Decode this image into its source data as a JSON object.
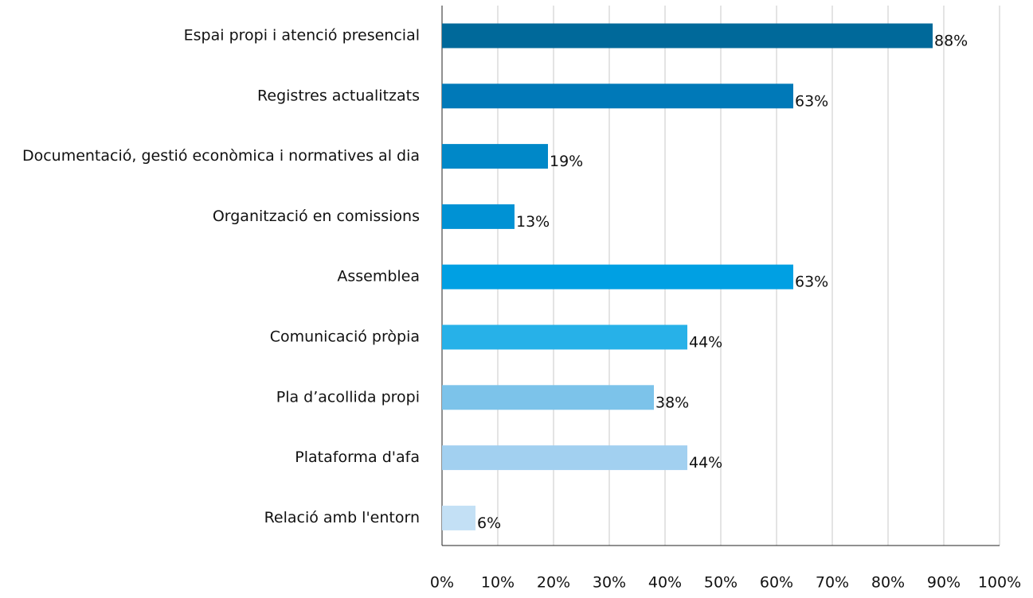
{
  "chart_data": {
    "type": "bar",
    "orientation": "horizontal",
    "categories": [
      "Espai propi i atenció presencial",
      "Registres actualitzats",
      "Documentació, gestió econòmica i normatives al dia",
      "Organització en comissions",
      "Assemblea",
      "Comunicació pròpia",
      "Pla d’acollida propi",
      "Plataforma d'afa",
      "Relació amb l'entorn"
    ],
    "values": [
      88,
      63,
      19,
      13,
      63,
      44,
      38,
      44,
      6
    ],
    "value_labels": [
      "88%",
      "63%",
      "19%",
      "13%",
      "63%",
      "44%",
      "38%",
      "44%",
      "6%"
    ],
    "colors": [
      "#00699a",
      "#0079b8",
      "#0088c8",
      "#0092d4",
      "#00a0e3",
      "#27b1e8",
      "#7cc3ea",
      "#a2d0f0",
      "#c3e0f5"
    ],
    "xlim": [
      0,
      100
    ],
    "xticks": [
      {
        "value": 0,
        "label": "0%"
      },
      {
        "value": 10,
        "label": "10%"
      },
      {
        "value": 20,
        "label": "20%"
      },
      {
        "value": 30,
        "label": "30%"
      },
      {
        "value": 40,
        "label": "40%"
      },
      {
        "value": 50,
        "label": "50%"
      },
      {
        "value": 60,
        "label": "60%"
      },
      {
        "value": 70,
        "label": "70%"
      },
      {
        "value": 80,
        "label": "80%"
      },
      {
        "value": 90,
        "label": "90%"
      },
      {
        "value": 100,
        "label": "100%"
      }
    ],
    "grid": true
  }
}
